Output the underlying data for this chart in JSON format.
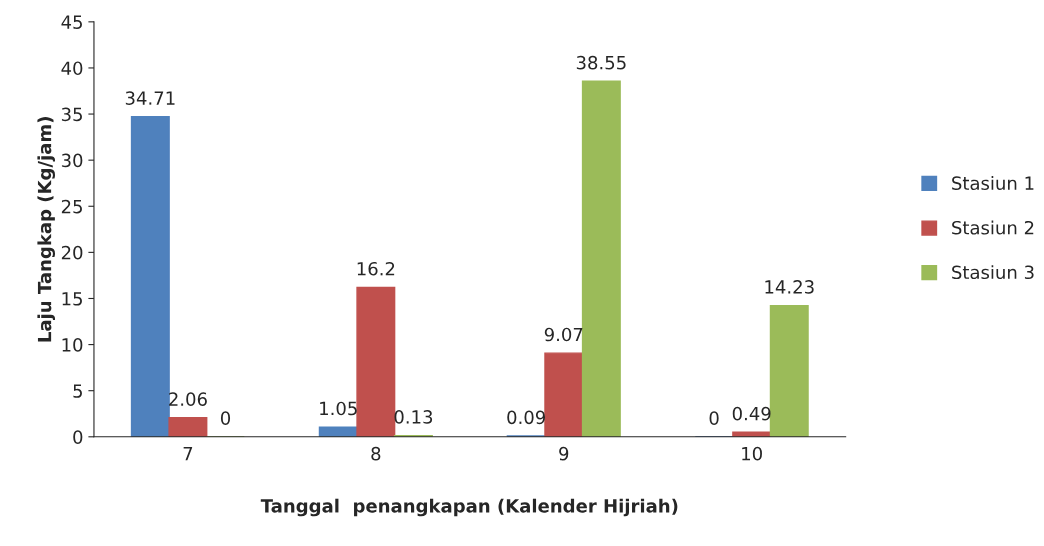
{
  "chart_data": {
    "type": "bar",
    "xlabel": "Tanggal  penangkapan (Kalender Hijriah)",
    "ylabel": "Laju Tangkap (Kg/jam)",
    "categories": [
      "7",
      "8",
      "9",
      "10"
    ],
    "series": [
      {
        "name": "Stasiun 1",
        "color": "#4f81bd",
        "values": [
          34.71,
          1.05,
          0.09,
          0
        ]
      },
      {
        "name": "Stasiun 2",
        "color": "#c0504d",
        "values": [
          2.06,
          16.2,
          9.07,
          0.49
        ]
      },
      {
        "name": "Stasiun 3",
        "color": "#9bbb59",
        "values": [
          0,
          0.13,
          38.55,
          14.23
        ]
      }
    ],
    "ylim": [
      0,
      45
    ],
    "yticks": [
      0,
      5,
      10,
      15,
      20,
      25,
      30,
      35,
      40,
      45
    ],
    "grid": false,
    "legend": "right",
    "data_labels": true
  }
}
